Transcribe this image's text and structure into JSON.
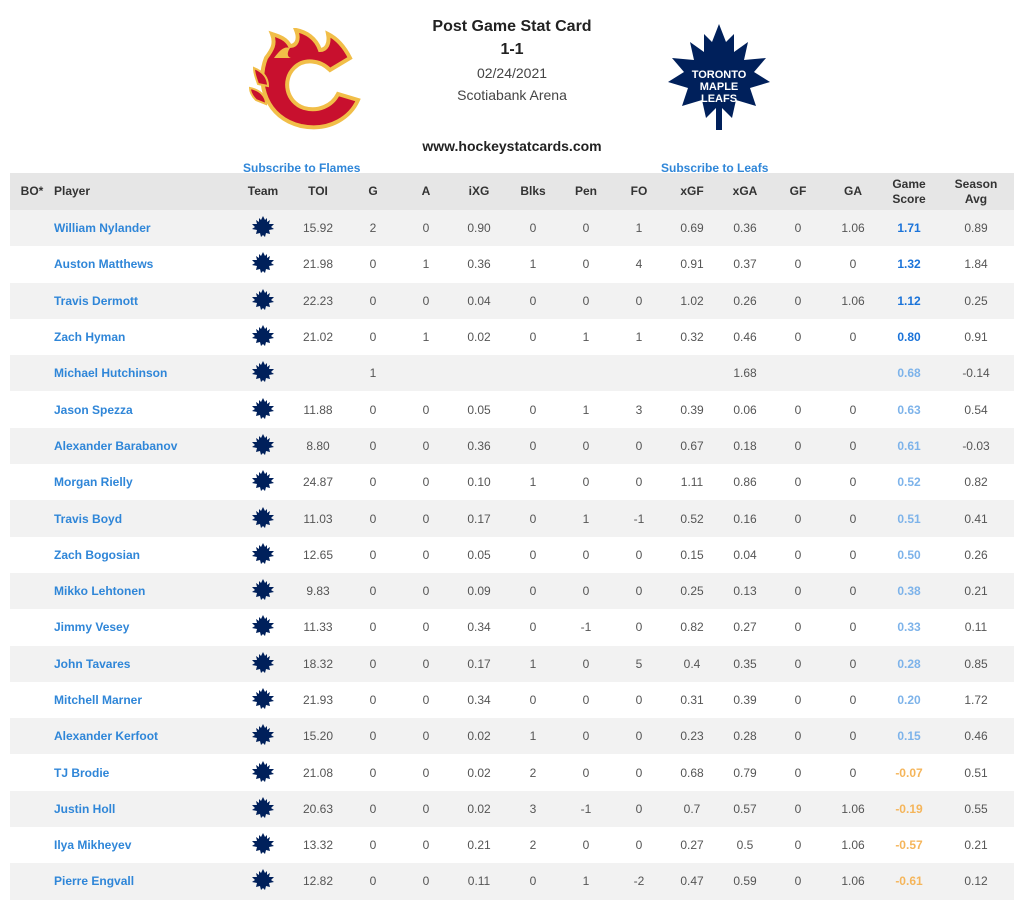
{
  "header": {
    "title": "Post Game Stat Card",
    "score": "1-1",
    "date": "02/24/2021",
    "arena": "Scotiabank Arena",
    "site": "www.hockeystatcards.com",
    "subscribe_flames": "Subscribe to Flames",
    "subscribe_leafs": "Subscribe to Leafs",
    "logo_left": "calgary-flames-logo",
    "logo_right": "toronto-maple-leafs-logo",
    "leafs_logo_text": [
      "TORONTO",
      "MAPLE",
      "LEAFS"
    ]
  },
  "table": {
    "columns": [
      "BO*",
      "Player",
      "Team",
      "TOI",
      "G",
      "A",
      "iXG",
      "Blks",
      "Pen",
      "FO",
      "xGF",
      "xGA",
      "GF",
      "GA",
      "Game Score",
      "Season Avg"
    ],
    "columns_split": {
      "game_score": [
        "Game",
        "Score"
      ],
      "season_avg": [
        "Season",
        "Avg"
      ]
    },
    "rows": [
      {
        "player": "William Nylander",
        "toi": "15.92",
        "g": "2",
        "a": "0",
        "ixg": "0.90",
        "blks": "0",
        "pen": "0",
        "fo": "1",
        "xgf": "0.69",
        "xga": "0.36",
        "gf": "0",
        "ga": "1.06",
        "gs": "1.71",
        "avg": "0.89",
        "gs_color": "#1a73d9"
      },
      {
        "player": "Auston Matthews",
        "toi": "21.98",
        "g": "0",
        "a": "1",
        "ixg": "0.36",
        "blks": "1",
        "pen": "0",
        "fo": "4",
        "xgf": "0.91",
        "xga": "0.37",
        "gf": "0",
        "ga": "0",
        "gs": "1.32",
        "avg": "1.84",
        "gs_color": "#1a73d9"
      },
      {
        "player": "Travis Dermott",
        "toi": "22.23",
        "g": "0",
        "a": "0",
        "ixg": "0.04",
        "blks": "0",
        "pen": "0",
        "fo": "0",
        "xgf": "1.02",
        "xga": "0.26",
        "gf": "0",
        "ga": "1.06",
        "gs": "1.12",
        "avg": "0.25",
        "gs_color": "#1a73d9"
      },
      {
        "player": "Zach Hyman",
        "toi": "21.02",
        "g": "0",
        "a": "1",
        "ixg": "0.02",
        "blks": "0",
        "pen": "1",
        "fo": "1",
        "xgf": "0.32",
        "xga": "0.46",
        "gf": "0",
        "ga": "0",
        "gs": "0.80",
        "avg": "0.91",
        "gs_color": "#1a73d9"
      },
      {
        "player": "Michael Hutchinson",
        "toi": "",
        "g": "1",
        "a": "",
        "ixg": "",
        "blks": "",
        "pen": "",
        "fo": "",
        "xgf": "",
        "xga": "1.68",
        "gf": "",
        "ga": "",
        "gs": "0.68",
        "avg": "-0.14",
        "gs_color": "#7db3ea"
      },
      {
        "player": "Jason Spezza",
        "toi": "11.88",
        "g": "0",
        "a": "0",
        "ixg": "0.05",
        "blks": "0",
        "pen": "1",
        "fo": "3",
        "xgf": "0.39",
        "xga": "0.06",
        "gf": "0",
        "ga": "0",
        "gs": "0.63",
        "avg": "0.54",
        "gs_color": "#7db3ea"
      },
      {
        "player": "Alexander Barabanov",
        "toi": "8.80",
        "g": "0",
        "a": "0",
        "ixg": "0.36",
        "blks": "0",
        "pen": "0",
        "fo": "0",
        "xgf": "0.67",
        "xga": "0.18",
        "gf": "0",
        "ga": "0",
        "gs": "0.61",
        "avg": "-0.03",
        "gs_color": "#7db3ea"
      },
      {
        "player": "Morgan Rielly",
        "toi": "24.87",
        "g": "0",
        "a": "0",
        "ixg": "0.10",
        "blks": "1",
        "pen": "0",
        "fo": "0",
        "xgf": "1.11",
        "xga": "0.86",
        "gf": "0",
        "ga": "0",
        "gs": "0.52",
        "avg": "0.82",
        "gs_color": "#7db3ea"
      },
      {
        "player": "Travis Boyd",
        "toi": "11.03",
        "g": "0",
        "a": "0",
        "ixg": "0.17",
        "blks": "0",
        "pen": "1",
        "fo": "-1",
        "xgf": "0.52",
        "xga": "0.16",
        "gf": "0",
        "ga": "0",
        "gs": "0.51",
        "avg": "0.41",
        "gs_color": "#7db3ea"
      },
      {
        "player": "Zach Bogosian",
        "toi": "12.65",
        "g": "0",
        "a": "0",
        "ixg": "0.05",
        "blks": "0",
        "pen": "0",
        "fo": "0",
        "xgf": "0.15",
        "xga": "0.04",
        "gf": "0",
        "ga": "0",
        "gs": "0.50",
        "avg": "0.26",
        "gs_color": "#7db3ea"
      },
      {
        "player": "Mikko Lehtonen",
        "toi": "9.83",
        "g": "0",
        "a": "0",
        "ixg": "0.09",
        "blks": "0",
        "pen": "0",
        "fo": "0",
        "xgf": "0.25",
        "xga": "0.13",
        "gf": "0",
        "ga": "0",
        "gs": "0.38",
        "avg": "0.21",
        "gs_color": "#7db3ea"
      },
      {
        "player": "Jimmy Vesey",
        "toi": "11.33",
        "g": "0",
        "a": "0",
        "ixg": "0.34",
        "blks": "0",
        "pen": "-1",
        "fo": "0",
        "xgf": "0.82",
        "xga": "0.27",
        "gf": "0",
        "ga": "0",
        "gs": "0.33",
        "avg": "0.11",
        "gs_color": "#7db3ea"
      },
      {
        "player": "John Tavares",
        "toi": "18.32",
        "g": "0",
        "a": "0",
        "ixg": "0.17",
        "blks": "1",
        "pen": "0",
        "fo": "5",
        "xgf": "0.4",
        "xga": "0.35",
        "gf": "0",
        "ga": "0",
        "gs": "0.28",
        "avg": "0.85",
        "gs_color": "#7db3ea"
      },
      {
        "player": "Mitchell Marner",
        "toi": "21.93",
        "g": "0",
        "a": "0",
        "ixg": "0.34",
        "blks": "0",
        "pen": "0",
        "fo": "0",
        "xgf": "0.31",
        "xga": "0.39",
        "gf": "0",
        "ga": "0",
        "gs": "0.20",
        "avg": "1.72",
        "gs_color": "#7db3ea"
      },
      {
        "player": "Alexander Kerfoot",
        "toi": "15.20",
        "g": "0",
        "a": "0",
        "ixg": "0.02",
        "blks": "1",
        "pen": "0",
        "fo": "0",
        "xgf": "0.23",
        "xga": "0.28",
        "gf": "0",
        "ga": "0",
        "gs": "0.15",
        "avg": "0.46",
        "gs_color": "#7db3ea"
      },
      {
        "player": "TJ Brodie",
        "toi": "21.08",
        "g": "0",
        "a": "0",
        "ixg": "0.02",
        "blks": "2",
        "pen": "0",
        "fo": "0",
        "xgf": "0.68",
        "xga": "0.79",
        "gf": "0",
        "ga": "0",
        "gs": "-0.07",
        "avg": "0.51",
        "gs_color": "#f5b55a"
      },
      {
        "player": "Justin Holl",
        "toi": "20.63",
        "g": "0",
        "a": "0",
        "ixg": "0.02",
        "blks": "3",
        "pen": "-1",
        "fo": "0",
        "xgf": "0.7",
        "xga": "0.57",
        "gf": "0",
        "ga": "1.06",
        "gs": "-0.19",
        "avg": "0.55",
        "gs_color": "#f5b55a"
      },
      {
        "player": "Ilya Mikheyev",
        "toi": "13.32",
        "g": "0",
        "a": "0",
        "ixg": "0.21",
        "blks": "2",
        "pen": "0",
        "fo": "0",
        "xgf": "0.27",
        "xga": "0.5",
        "gf": "0",
        "ga": "1.06",
        "gs": "-0.57",
        "avg": "0.21",
        "gs_color": "#f5b55a"
      },
      {
        "player": "Pierre Engvall",
        "toi": "12.82",
        "g": "0",
        "a": "0",
        "ixg": "0.11",
        "blks": "0",
        "pen": "1",
        "fo": "-2",
        "xgf": "0.47",
        "xga": "0.59",
        "gf": "0",
        "ga": "1.06",
        "gs": "-0.61",
        "avg": "0.12",
        "gs_color": "#f5b55a"
      }
    ]
  }
}
